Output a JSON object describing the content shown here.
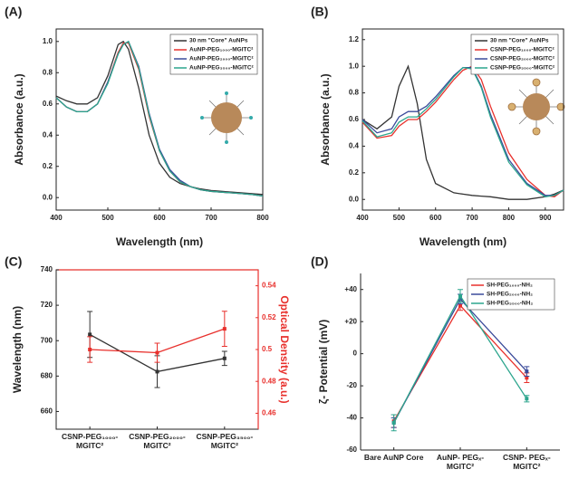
{
  "chart_data": [
    {
      "type": "line",
      "label": "(A)",
      "xlabel": "Wavelength (nm)",
      "ylabel": "Absorbance (a.u.)",
      "x": [
        400,
        420,
        440,
        460,
        480,
        500,
        520,
        530,
        540,
        560,
        580,
        600,
        620,
        640,
        660,
        680,
        700,
        720,
        740,
        760,
        780,
        800
      ],
      "xlim": [
        400,
        800
      ],
      "xticks": [
        400,
        500,
        600,
        700,
        800
      ],
      "ylim": [
        -0.08,
        1.08
      ],
      "yticks": [
        {
          "value": 0,
          "label": "0.0"
        },
        0.2,
        0.4,
        0.6,
        0.8,
        {
          "value": 1,
          "label": "1.0"
        }
      ],
      "legend": "upper right",
      "series": [
        {
          "name": "30 nm \"Core\" AuNPs",
          "color": "#333333",
          "values": [
            0.65,
            0.62,
            0.6,
            0.6,
            0.64,
            0.78,
            0.98,
            1.0,
            0.95,
            0.7,
            0.4,
            0.22,
            0.13,
            0.09,
            0.07,
            0.055,
            0.045,
            0.04,
            0.035,
            0.03,
            0.025,
            0.02
          ]
        },
        {
          "name": "AuNP-PEG₁₀₀₀-MGITC²",
          "color": "#e8302c",
          "values": [
            0.64,
            0.58,
            0.55,
            0.55,
            0.6,
            0.74,
            0.93,
            0.99,
            0.99,
            0.82,
            0.52,
            0.3,
            0.17,
            0.1,
            0.07,
            0.05,
            0.04,
            0.035,
            0.03,
            0.025,
            0.02,
            0.01
          ]
        },
        {
          "name": "AuNP-PEG₂₀₀₀-MGITC²",
          "color": "#3a4a9a",
          "values": [
            0.64,
            0.58,
            0.55,
            0.55,
            0.6,
            0.74,
            0.92,
            0.98,
            1.0,
            0.84,
            0.54,
            0.31,
            0.18,
            0.11,
            0.07,
            0.05,
            0.04,
            0.035,
            0.03,
            0.025,
            0.02,
            0.01
          ]
        },
        {
          "name": "AuNP-PEG₃₅₀₀-MGITC²",
          "color": "#2ca58d",
          "values": [
            0.64,
            0.58,
            0.55,
            0.55,
            0.6,
            0.73,
            0.92,
            0.98,
            1.0,
            0.83,
            0.53,
            0.3,
            0.17,
            0.1,
            0.07,
            0.05,
            0.04,
            0.035,
            0.03,
            0.025,
            0.02,
            0.01
          ]
        }
      ]
    },
    {
      "type": "line",
      "label": "(B)",
      "xlabel": "Wavelength (nm)",
      "ylabel": "Absorbance (a.u.)",
      "x": [
        400,
        440,
        480,
        500,
        525,
        550,
        575,
        600,
        650,
        675,
        700,
        725,
        750,
        800,
        850,
        900,
        925,
        950
      ],
      "xlim": [
        400,
        950
      ],
      "xticks": [
        400,
        500,
        600,
        700,
        800,
        900
      ],
      "ylim": [
        -0.08,
        1.28
      ],
      "yticks": [
        {
          "value": 0,
          "label": "0.0"
        },
        0.2,
        0.4,
        0.6,
        0.8,
        {
          "value": 1,
          "label": "1.0"
        },
        1.2
      ],
      "legend": "upper right",
      "series": [
        {
          "name": "30 nm \"Core\" AuNPs",
          "color": "#333333",
          "values": [
            0.6,
            0.53,
            0.62,
            0.85,
            1.0,
            0.72,
            0.3,
            0.12,
            0.05,
            0.04,
            0.03,
            0.025,
            0.02,
            0.0,
            0.0,
            0.02,
            0.04,
            0.07
          ]
        },
        {
          "name": "CSNP-PEG₁₀₀₀-MGITC²",
          "color": "#e8302c",
          "values": [
            0.58,
            0.46,
            0.48,
            0.55,
            0.6,
            0.6,
            0.66,
            0.73,
            0.9,
            0.97,
            1.0,
            0.9,
            0.7,
            0.35,
            0.15,
            0.03,
            0.02,
            0.07
          ]
        },
        {
          "name": "CSNP-PEG₂₀₀₀-MGITC²",
          "color": "#3a4a9a",
          "values": [
            0.6,
            0.5,
            0.53,
            0.62,
            0.66,
            0.66,
            0.7,
            0.77,
            0.93,
            0.99,
            0.99,
            0.85,
            0.64,
            0.3,
            0.12,
            0.03,
            0.03,
            0.07
          ]
        },
        {
          "name": "CSNP-PEG₃₅₀₀-MGITC²",
          "color": "#2ca58d",
          "values": [
            0.59,
            0.47,
            0.5,
            0.58,
            0.62,
            0.62,
            0.68,
            0.75,
            0.92,
            0.99,
            0.98,
            0.84,
            0.62,
            0.28,
            0.11,
            0.02,
            0.03,
            0.07
          ]
        }
      ]
    },
    {
      "type": "line",
      "label": "(C)",
      "ylabel": "Wavelength (nm)",
      "y2label": "Optical Density (a.u.)",
      "y2color": "#e8302c",
      "categories": [
        "CSNP-PEG₁₀₀₀-MGITC²",
        "CSNP-PEG₂₀₀₀-MGITC²",
        "CSNP-PEG₃₅₀₀-MGITC²"
      ],
      "ylim": [
        650,
        740
      ],
      "yticks": [
        660,
        680,
        700,
        720,
        740
      ],
      "y2lim": [
        0.45,
        0.55
      ],
      "y2ticks": [
        0.46,
        0.48,
        0.5,
        0.52,
        0.54
      ],
      "series": [
        {
          "color": "#333333",
          "values": [
            703.5,
            682.5,
            690
          ],
          "errors": [
            13,
            9,
            4
          ]
        },
        {
          "color": "#e8302c",
          "axis": "y2",
          "values": [
            0.5,
            0.498,
            0.513
          ],
          "errors": [
            0.008,
            0.006,
            0.011
          ]
        }
      ]
    },
    {
      "type": "line",
      "label": "(D)",
      "ylabel": "ζ- Potential (mV)",
      "categories": [
        "Bare AuNP Core",
        "AuNP- PEGₓ-MGITC²",
        "CSNP- PEGₓ-MGITC²"
      ],
      "ylim": [
        -60,
        50
      ],
      "yticks": [
        -60,
        -40,
        -20,
        0,
        {
          "value": 20,
          "label": "+20"
        },
        {
          "value": 40,
          "label": "+40"
        }
      ],
      "legend": "upper right",
      "series": [
        {
          "name": "SH-PEG₁₀₀₀-NH₂",
          "color": "#e8302c",
          "values": [
            -42,
            30,
            -15
          ],
          "errors": [
            4,
            3,
            3
          ]
        },
        {
          "name": "SH-PEG₂₀₀₀-NH₂",
          "color": "#3a4a9a",
          "values": [
            -43,
            34,
            -11
          ],
          "errors": [
            3,
            3,
            3
          ]
        },
        {
          "name": "SH-PEG₃₅₀₀-NH₂",
          "color": "#2ca58d",
          "values": [
            -43,
            36,
            -28
          ],
          "errors": [
            5,
            4,
            2
          ]
        }
      ]
    }
  ]
}
